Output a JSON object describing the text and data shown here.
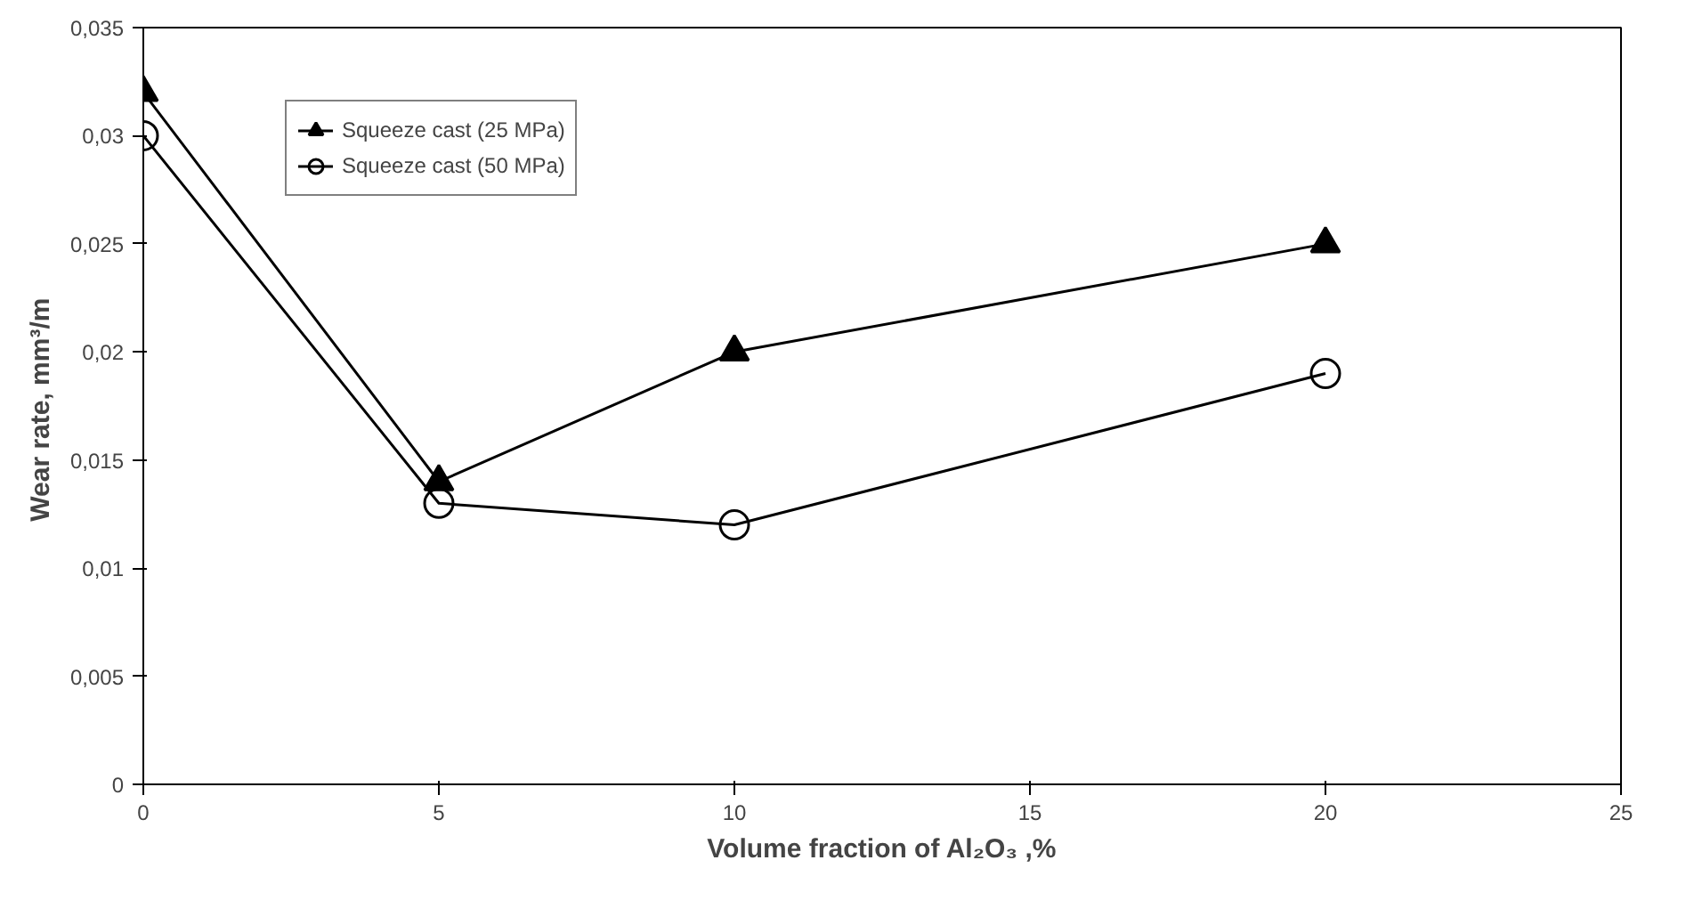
{
  "chart_data": {
    "type": "line",
    "xlabel": "Volume fraction of Al₂O₃ ,%",
    "ylabel": "Wear rate,  mm³/m",
    "x": [
      0,
      5,
      10,
      20
    ],
    "series": [
      {
        "name": "Squeeze cast (25 MPa)",
        "color": "#000000",
        "marker": "triangle",
        "values": [
          0.032,
          0.014,
          0.02,
          0.025
        ]
      },
      {
        "name": "Squeeze cast (50 MPa)",
        "color": "#000000",
        "marker": "circle",
        "values": [
          0.03,
          0.013,
          0.012,
          0.019
        ]
      }
    ],
    "xlim": [
      0,
      25
    ],
    "xticks": [
      0,
      5,
      10,
      15,
      20,
      25
    ],
    "ylim": [
      0,
      0.035
    ],
    "yticks": [
      0,
      {
        "value": 0.005,
        "label": "0,005"
      },
      {
        "value": 0.01,
        "label": "0,01"
      },
      {
        "value": 0.015,
        "label": "0,015"
      },
      {
        "value": 0.02,
        "label": "0,02"
      },
      {
        "value": 0.025,
        "label": "0,025"
      },
      {
        "value": 0.03,
        "label": "0,03"
      },
      {
        "value": 0.035,
        "label": "0,035"
      }
    ],
    "grid": false,
    "legend": "top left"
  }
}
